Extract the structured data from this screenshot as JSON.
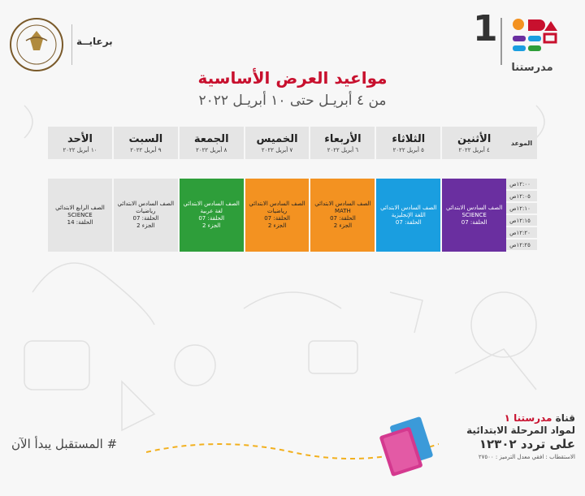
{
  "header": {
    "sponsor_label": "برعايــة",
    "logo_number": "1",
    "logo_text": "مدرستنا"
  },
  "title": "مواعيد العرض الأساسية",
  "subtitle": "من ٤ أبريـل حتى ١٠ أبريـل ٢٠٢٢",
  "table": {
    "time_header": "الموعد",
    "days": [
      {
        "name": "الأثنين",
        "date": "٤ أبريل ٢٠٢٢"
      },
      {
        "name": "الثلاثاء",
        "date": "٥ أبريل ٢٠٢٢"
      },
      {
        "name": "الأربعاء",
        "date": "٦ أبريل ٢٠٢٢"
      },
      {
        "name": "الخميس",
        "date": "٧ أبريل ٢٠٢٢"
      },
      {
        "name": "الجمعة",
        "date": "٨ أبريل ٢٠٢٢"
      },
      {
        "name": "السبت",
        "date": "٩ أبريل ٢٠٢٢"
      },
      {
        "name": "الأحد",
        "date": "١٠ أبريل ٢٠٢٢"
      }
    ],
    "times": [
      "١٢:٠٠ص",
      "١٢:٠٥ص",
      "١٢:١٠ص",
      "١٢:١٥ص",
      "١٢:٢٠ص",
      "١٢:٢٥ص"
    ],
    "slots": [
      {
        "lines": [
          "الصف السادس الابتدائي",
          "SCIENCE",
          "الحلقة: 07"
        ],
        "bg": "#6a2fa0",
        "fg": "#ffffff"
      },
      {
        "lines": [
          "الصف السادس الابتدائي",
          "اللغة الإنجليزية",
          "الحلقة: 07"
        ],
        "bg": "#1a9ee0",
        "fg": "#ffffff"
      },
      {
        "lines": [
          "الصف السادس الابتدائي",
          "MATH",
          "الحلقة: 07",
          "الجزء 2"
        ],
        "bg": "#f39221",
        "fg": "#222222"
      },
      {
        "lines": [
          "الصف السادس الابتدائي",
          "رياضيات",
          "الحلقة: 07",
          "الجزء 2"
        ],
        "bg": "#f39221",
        "fg": "#222222"
      },
      {
        "lines": [
          "الصف السادس الابتدائي",
          "لغة عربية",
          "الحلقة: 07",
          "الجزء 2"
        ],
        "bg": "#2e9e3a",
        "fg": "#ffffff"
      },
      {
        "lines": [
          "الصف السادس الابتدائي",
          "رياضيات",
          "الحلقة: 07",
          "الجزء 2"
        ],
        "bg": "#e5e5e5",
        "fg": "#222222"
      },
      {
        "lines": [
          "الصف الرابع الابتدائي",
          "SCIENCE",
          "الحلقة: 14"
        ],
        "bg": "#e5e5e5",
        "fg": "#222222"
      }
    ]
  },
  "footer": {
    "hashtag": "# المستقبل يبدأ الآن",
    "channel_prefix": "قناة",
    "channel_name": "مدرستنا ١",
    "line2": "لمواد المرحلة الابتدائية",
    "line3": "على تردد ١٢٣٠٢",
    "line4": "الاستقطاب : افقي معدل الترميز : ٢٧٥٠٠"
  }
}
